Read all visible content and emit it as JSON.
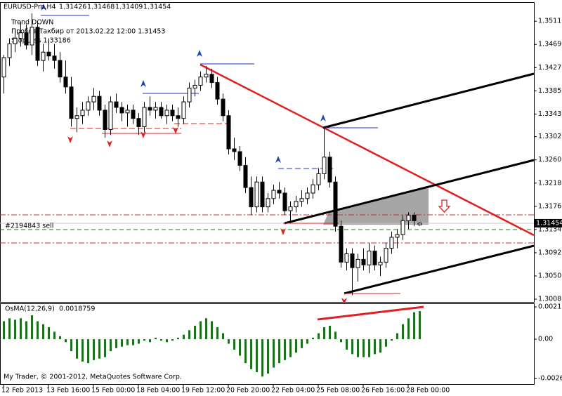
{
  "chart_data": [
    {
      "type": "candlestick",
      "symbol": "EURUSD-Pro,H4",
      "annotations": [
        "Trend DOWN",
        "Пробит Такбир от 2013.02.22 12:00  1.31453",
        "StopLoss 1.33186"
      ],
      "order_label": "#2194843 sell",
      "copyright": "My Trader, © 2001-2012, MetaQuotes Software Corp.",
      "time_labels": [
        "12 Feb 2013",
        "13 Feb 16:00",
        "15 Feb 00:00",
        "18 Feb 04:00",
        "19 Feb 12:00",
        "20 Feb 20:00",
        "22 Feb 04:00",
        "25 Feb 08:00",
        "26 Feb 16:00",
        "28 Feb 00:00"
      ],
      "up_color": "#ffffff",
      "down_color": "#000000",
      "outline_color": "#000000",
      "ylim": [
        1.3003,
        1.3543
      ],
      "yticks": [
        {
          "value": 1.3511,
          "label": "1.35110"
        },
        {
          "value": 1.3469,
          "label": "1.34690"
        },
        {
          "value": 1.3427,
          "label": "1.34270"
        },
        {
          "value": 1.3385,
          "label": "1.33850"
        },
        {
          "value": 1.3343,
          "label": "1.33430"
        },
        {
          "value": 1.3302,
          "label": "1.33020"
        },
        {
          "value": 1.326,
          "label": "1.32600"
        },
        {
          "value": 1.3218,
          "label": "1.32180"
        },
        {
          "value": 1.3176,
          "label": "1.31760"
        },
        {
          "value": 1.3134,
          "label": "1.31340"
        },
        {
          "value": 1.3092,
          "label": "1.30920"
        },
        {
          "value": 1.305,
          "label": "1.30500"
        },
        {
          "value": 1.3008,
          "label": "1.30080"
        }
      ],
      "candles": [
        [
          1.341,
          1.345,
          1.338,
          1.3445
        ],
        [
          1.3445,
          1.348,
          1.343,
          1.347
        ],
        [
          1.347,
          1.3495,
          1.3455,
          1.348
        ],
        [
          1.348,
          1.351,
          1.3465,
          1.349
        ],
        [
          1.349,
          1.3505,
          1.346,
          1.3468
        ],
        [
          1.3468,
          1.3525,
          1.345,
          1.35
        ],
        [
          1.35,
          1.351,
          1.343,
          1.344
        ],
        [
          1.344,
          1.347,
          1.342,
          1.3455
        ],
        [
          1.3455,
          1.348,
          1.344,
          1.3448
        ],
        [
          1.3448,
          1.347,
          1.3425,
          1.344
        ],
        [
          1.344,
          1.3455,
          1.34,
          1.341
        ],
        [
          1.341,
          1.344,
          1.338,
          1.3392
        ],
        [
          1.3392,
          1.341,
          1.332,
          1.3335
        ],
        [
          1.3335,
          1.3355,
          1.331,
          1.334
        ],
        [
          1.334,
          1.3365,
          1.3325,
          1.335
        ],
        [
          1.335,
          1.3375,
          1.334,
          1.3365
        ],
        [
          1.3365,
          1.339,
          1.335,
          1.3375
        ],
        [
          1.3375,
          1.3385,
          1.334,
          1.335
        ],
        [
          1.335,
          1.336,
          1.33,
          1.3315
        ],
        [
          1.3315,
          1.3375,
          1.3305,
          1.3365
        ],
        [
          1.3365,
          1.338,
          1.3345,
          1.3355
        ],
        [
          1.3355,
          1.3365,
          1.333,
          1.3345
        ],
        [
          1.3345,
          1.336,
          1.332,
          1.335
        ],
        [
          1.335,
          1.336,
          1.3325,
          1.3335
        ],
        [
          1.3335,
          1.3345,
          1.3305,
          1.332
        ],
        [
          1.332,
          1.3365,
          1.331,
          1.3355
        ],
        [
          1.3355,
          1.3375,
          1.334,
          1.335
        ],
        [
          1.335,
          1.3365,
          1.3335,
          1.3355
        ],
        [
          1.3355,
          1.3365,
          1.3335,
          1.334
        ],
        [
          1.334,
          1.336,
          1.3325,
          1.335
        ],
        [
          1.335,
          1.336,
          1.333,
          1.334
        ],
        [
          1.334,
          1.3355,
          1.332,
          1.3335
        ],
        [
          1.3335,
          1.3375,
          1.3325,
          1.3365
        ],
        [
          1.3365,
          1.34,
          1.3355,
          1.339
        ],
        [
          1.339,
          1.3405,
          1.3375,
          1.3395
        ],
        [
          1.3395,
          1.342,
          1.3385,
          1.341
        ],
        [
          1.341,
          1.343,
          1.34,
          1.3415
        ],
        [
          1.3415,
          1.3425,
          1.339,
          1.34
        ],
        [
          1.34,
          1.341,
          1.336,
          1.337
        ],
        [
          1.337,
          1.338,
          1.333,
          1.334
        ],
        [
          1.334,
          1.335,
          1.327,
          1.328
        ],
        [
          1.328,
          1.33,
          1.326,
          1.3275
        ],
        [
          1.3275,
          1.3285,
          1.324,
          1.325
        ],
        [
          1.325,
          1.3265,
          1.32,
          1.321
        ],
        [
          1.321,
          1.323,
          1.316,
          1.3175
        ],
        [
          1.3175,
          1.323,
          1.3165,
          1.322
        ],
        [
          1.322,
          1.323,
          1.3165,
          1.3175
        ],
        [
          1.3175,
          1.32,
          1.3165,
          1.319
        ],
        [
          1.319,
          1.3215,
          1.318,
          1.3205
        ],
        [
          1.3205,
          1.322,
          1.319,
          1.32
        ],
        [
          1.32,
          1.321,
          1.316,
          1.3168
        ],
        [
          1.3168,
          1.3185,
          1.315,
          1.3175
        ],
        [
          1.3175,
          1.3195,
          1.3165,
          1.3185
        ],
        [
          1.3185,
          1.3205,
          1.3175,
          1.319
        ],
        [
          1.319,
          1.321,
          1.318,
          1.32
        ],
        [
          1.32,
          1.3225,
          1.319,
          1.3215
        ],
        [
          1.3215,
          1.3245,
          1.3205,
          1.3235
        ],
        [
          1.3235,
          1.332,
          1.3225,
          1.3265
        ],
        [
          1.3265,
          1.3275,
          1.321,
          1.322
        ],
        [
          1.322,
          1.323,
          1.313,
          1.314
        ],
        [
          1.314,
          1.315,
          1.3065,
          1.3075
        ],
        [
          1.3075,
          1.31,
          1.306,
          1.309
        ],
        [
          1.309,
          1.31,
          1.3015,
          1.3065
        ],
        [
          1.3065,
          1.309,
          1.304,
          1.308
        ],
        [
          1.308,
          1.31,
          1.306,
          1.307
        ],
        [
          1.307,
          1.311,
          1.3055,
          1.3095
        ],
        [
          1.3095,
          1.3105,
          1.306,
          1.307
        ],
        [
          1.307,
          1.3085,
          1.305,
          1.3075
        ],
        [
          1.3075,
          1.311,
          1.3065,
          1.31
        ],
        [
          1.31,
          1.313,
          1.309,
          1.312
        ],
        [
          1.312,
          1.3135,
          1.31,
          1.3125
        ],
        [
          1.3125,
          1.316,
          1.3115,
          1.315
        ],
        [
          1.315,
          1.3165,
          1.3135,
          1.316
        ],
        [
          1.316,
          1.3165,
          1.314,
          1.315
        ],
        [
          1.31426,
          1.31468,
          1.31409,
          1.31454
        ]
      ]
    },
    {
      "type": "histogram",
      "title": "OsMA(12,26,9)",
      "current": 0.0018759,
      "color": "#1f6f1f",
      "ylim": [
        -0.003,
        0.00235
      ],
      "yticks": [
        0.002158,
        {
          "value": 0,
          "label": "0.00"
        },
        -0.002632
      ],
      "values": [
        0.0012,
        0.0014,
        0.0013,
        0.0014,
        0.0012,
        0.0016,
        0.0012,
        0.001,
        0.0008,
        0.0005,
        0.0002,
        -0.0002,
        -0.0008,
        -0.0013,
        -0.0015,
        -0.0016,
        -0.0014,
        -0.0013,
        -0.0012,
        -0.0008,
        -0.0006,
        -0.0005,
        -0.0004,
        -0.0004,
        -0.0003,
        -0.0001,
        -0.0002,
        0.0001,
        -0.0001,
        -0.0002,
        -0.0001,
        0.0001,
        0.0003,
        0.0006,
        0.0009,
        0.0012,
        0.0014,
        0.0012,
        0.0008,
        0.0004,
        -0.0003,
        -0.0007,
        -0.0011,
        -0.0016,
        -0.002,
        -0.0022,
        -0.0025,
        -0.0023,
        -0.0019,
        -0.0016,
        -0.0014,
        -0.0012,
        -0.0009,
        -0.0006,
        -0.0003,
        0.0001,
        0.0004,
        0.0008,
        0.0009,
        0.0005,
        -0.0002,
        -0.0007,
        -0.001,
        -0.0012,
        -0.0012,
        -0.0012,
        -0.001,
        -0.0009,
        -0.0005,
        -0.0001,
        0.0004,
        0.001,
        0.0014,
        0.0018,
        0.0018759
      ]
    }
  ]
}
